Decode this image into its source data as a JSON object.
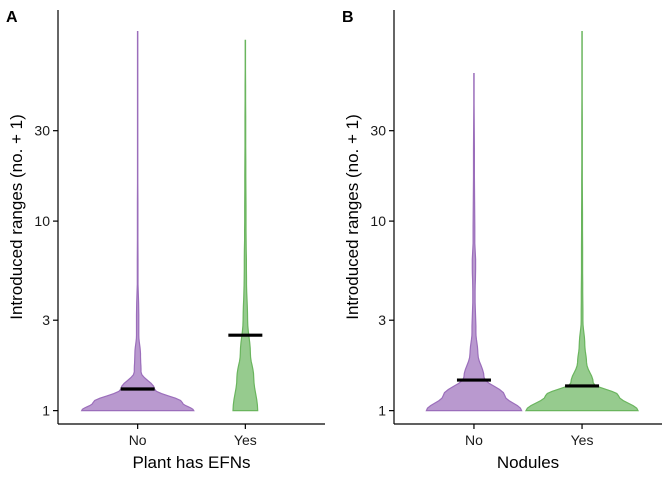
{
  "chart_data": [
    {
      "type": "violin",
      "panel_label": "A",
      "xlabel": "Plant has EFNs",
      "ylabel": "Introduced ranges (no. + 1)",
      "y_scale": "log",
      "ylim": [
        0.85,
        130
      ],
      "yticks": [
        1,
        3,
        10,
        30
      ],
      "categories": [
        "No",
        "Yes"
      ],
      "series": [
        {
          "category": "No",
          "color": "#9b6ebb",
          "median": 1.3,
          "max": 100,
          "density": [
            [
              1,
              1.0
            ],
            [
              1.1,
              0.8
            ],
            [
              1.3,
              0.3
            ],
            [
              1.6,
              0.06
            ],
            [
              2.0,
              0.05
            ],
            [
              2.5,
              0.02
            ],
            [
              3.2,
              0.02
            ],
            [
              5,
              0.006
            ],
            [
              20,
              0.003
            ],
            [
              100,
              0.002
            ]
          ]
        },
        {
          "category": "Yes",
          "color": "#6ab55e",
          "median": 2.5,
          "max": 90,
          "density": [
            [
              1,
              0.22
            ],
            [
              1.5,
              0.15
            ],
            [
              2.0,
              0.09
            ],
            [
              3.0,
              0.04
            ],
            [
              5,
              0.02
            ],
            [
              10,
              0.012
            ],
            [
              30,
              0.006
            ],
            [
              90,
              0.002
            ]
          ]
        }
      ]
    },
    {
      "type": "violin",
      "panel_label": "B",
      "xlabel": "Nodules",
      "ylabel": "Introduced ranges (no. + 1)",
      "y_scale": "log",
      "ylim": [
        0.85,
        130
      ],
      "yticks": [
        1,
        3,
        10,
        30
      ],
      "categories": [
        "No",
        "Yes"
      ],
      "series": [
        {
          "category": "No",
          "color": "#9b6ebb",
          "median": 1.45,
          "max": 60,
          "density": [
            [
              1,
              0.85
            ],
            [
              1.2,
              0.55
            ],
            [
              1.5,
              0.18
            ],
            [
              2.0,
              0.07
            ],
            [
              2.6,
              0.035
            ],
            [
              4,
              0.02
            ],
            [
              6,
              0.03
            ],
            [
              8,
              0.015
            ],
            [
              20,
              0.008
            ],
            [
              60,
              0.002
            ]
          ]
        },
        {
          "category": "Yes",
          "color": "#6ab55e",
          "median": 1.35,
          "max": 100,
          "density": [
            [
              1,
              1.0
            ],
            [
              1.2,
              0.65
            ],
            [
              1.4,
              0.2
            ],
            [
              1.8,
              0.08
            ],
            [
              2.2,
              0.05
            ],
            [
              3,
              0.015
            ],
            [
              6,
              0.01
            ],
            [
              20,
              0.005
            ],
            [
              100,
              0.002
            ]
          ]
        }
      ]
    }
  ]
}
